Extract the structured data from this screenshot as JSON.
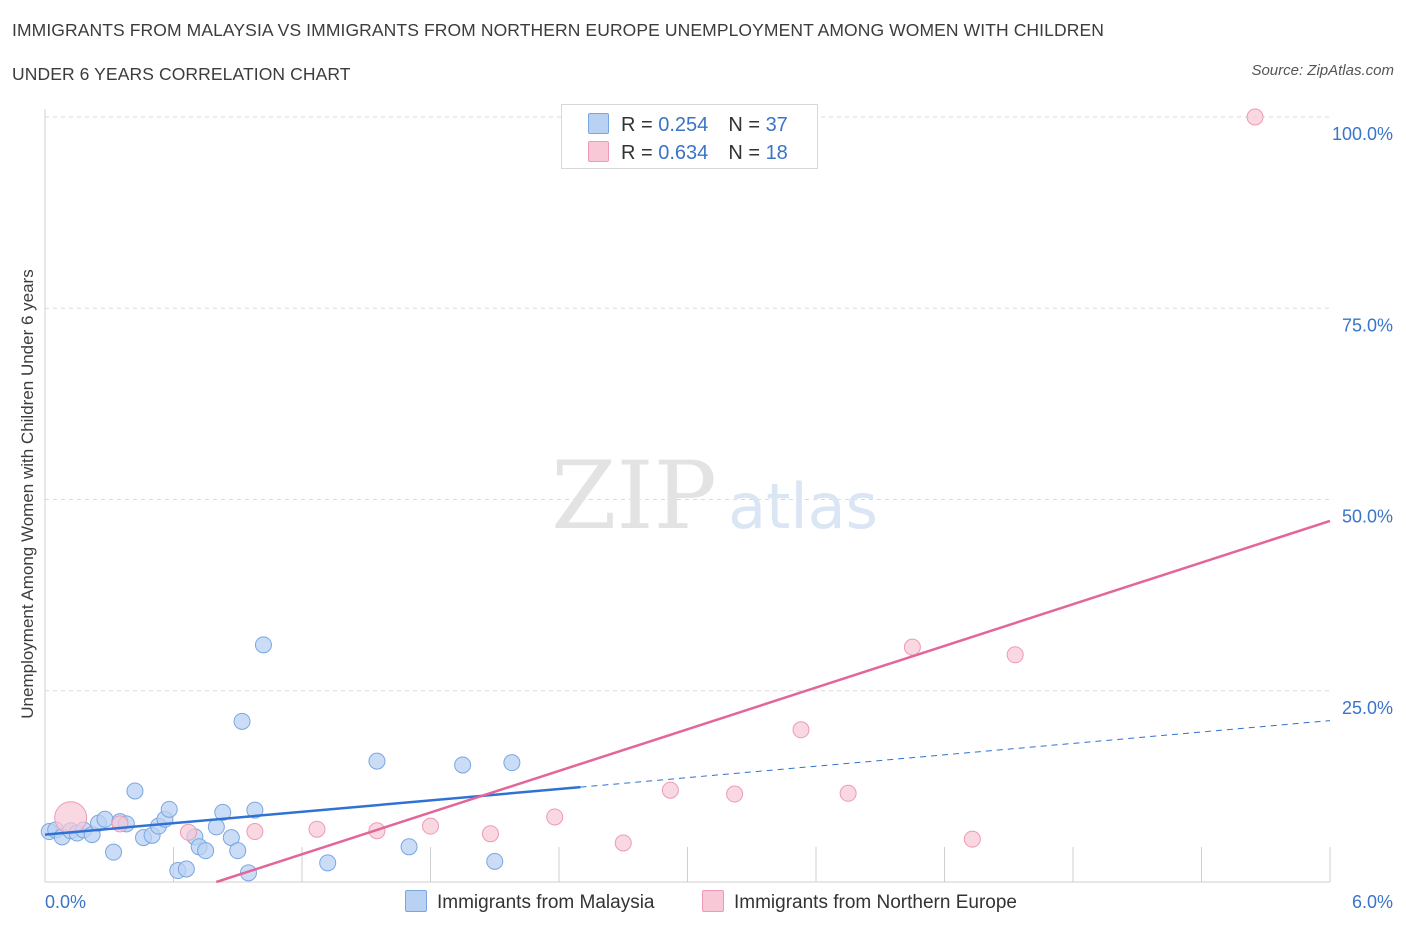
{
  "title": {
    "line1": "IMMIGRANTS FROM MALAYSIA VS IMMIGRANTS FROM NORTHERN EUROPE UNEMPLOYMENT AMONG WOMEN WITH CHILDREN",
    "line2": "UNDER 6 YEARS CORRELATION CHART"
  },
  "source": "Source: ZipAtlas.com",
  "watermark": {
    "zip": "ZIP",
    "atlas": "atlas"
  },
  "legend_top": [
    {
      "r_label": "R = ",
      "r_value": "0.254",
      "n_label": "N = ",
      "n_value": "37"
    },
    {
      "r_label": "R = ",
      "r_value": "0.634",
      "n_label": "N = ",
      "n_value": "18"
    }
  ],
  "legend_bottom": [
    "Immigrants from Malaysia",
    "Immigrants from Northern Europe"
  ],
  "colors": {
    "malaysia_fill": "#b9d1f3",
    "malaysia_stroke": "#7aa6e0",
    "malaysia_line": "#2f72d4",
    "europe_fill": "#f8c8d6",
    "europe_stroke": "#ee9ab4",
    "europe_line": "#e2669a",
    "tick_text": "#3a74c9",
    "grid": "#d9d9d9"
  },
  "chart_data": {
    "type": "scatter",
    "title": "IMMIGRANTS FROM MALAYSIA VS IMMIGRANTS FROM NORTHERN EUROPE UNEMPLOYMENT AMONG WOMEN WITH CHILDREN UNDER 6 YEARS CORRELATION CHART",
    "xlabel": "",
    "ylabel": "Unemployment Among Women with Children Under 6 years",
    "xlim": [
      0,
      6
    ],
    "ylim": [
      0,
      100
    ],
    "x_ticks": [
      "0.0%",
      "6.0%"
    ],
    "y_ticks": [
      {
        "value": 25,
        "label": "25.0%"
      },
      {
        "value": 50,
        "label": "50.0%"
      },
      {
        "value": 75,
        "label": "75.0%"
      },
      {
        "value": 100,
        "label": "100.0%"
      }
    ],
    "grid": true,
    "legend_position": "bottom",
    "series": [
      {
        "name": "Immigrants from Malaysia",
        "R": 0.254,
        "N": 37,
        "trend": {
          "x0": 0,
          "y0": 6.2,
          "x1": 2.5,
          "y1": 12.4,
          "dashed_to_x": 6,
          "dashed_y": 21.1
        },
        "points": [
          [
            0.02,
            6.6
          ],
          [
            0.05,
            6.8
          ],
          [
            0.08,
            5.9
          ],
          [
            0.12,
            6.7
          ],
          [
            0.15,
            6.4
          ],
          [
            0.18,
            6.8
          ],
          [
            0.22,
            6.2
          ],
          [
            0.25,
            7.7
          ],
          [
            0.28,
            8.2
          ],
          [
            0.32,
            3.9
          ],
          [
            0.35,
            7.9
          ],
          [
            0.38,
            7.6
          ],
          [
            0.42,
            11.9
          ],
          [
            0.46,
            5.8
          ],
          [
            0.5,
            6.1
          ],
          [
            0.53,
            7.3
          ],
          [
            0.56,
            8.2
          ],
          [
            0.58,
            9.5
          ],
          [
            0.62,
            1.5
          ],
          [
            0.66,
            1.7
          ],
          [
            0.7,
            5.9
          ],
          [
            0.72,
            4.6
          ],
          [
            0.75,
            4.1
          ],
          [
            0.8,
            7.2
          ],
          [
            0.83,
            9.1
          ],
          [
            0.87,
            5.8
          ],
          [
            0.9,
            4.1
          ],
          [
            0.92,
            21.0
          ],
          [
            0.95,
            1.2
          ],
          [
            0.98,
            9.4
          ],
          [
            1.02,
            31.0
          ],
          [
            1.32,
            2.5
          ],
          [
            1.55,
            15.8
          ],
          [
            1.7,
            4.6
          ],
          [
            1.95,
            15.3
          ],
          [
            2.1,
            2.7
          ],
          [
            2.18,
            15.6
          ]
        ]
      },
      {
        "name": "Immigrants from Northern Europe",
        "R": 0.634,
        "N": 18,
        "trend": {
          "x0": 0.8,
          "y0": 0,
          "x1": 6,
          "y1": 47.2
        },
        "points": [
          [
            0.12,
            8.4
          ],
          [
            0.35,
            7.6
          ],
          [
            0.67,
            6.5
          ],
          [
            0.98,
            6.6
          ],
          [
            1.27,
            6.9
          ],
          [
            1.55,
            6.7
          ],
          [
            1.8,
            7.3
          ],
          [
            2.08,
            6.3
          ],
          [
            2.38,
            8.5
          ],
          [
            2.7,
            5.1
          ],
          [
            2.92,
            12.0
          ],
          [
            3.22,
            11.5
          ],
          [
            3.53,
            19.9
          ],
          [
            3.75,
            11.6
          ],
          [
            4.05,
            30.7
          ],
          [
            4.33,
            5.6
          ],
          [
            4.53,
            29.7
          ],
          [
            5.65,
            100.0
          ]
        ]
      }
    ]
  }
}
